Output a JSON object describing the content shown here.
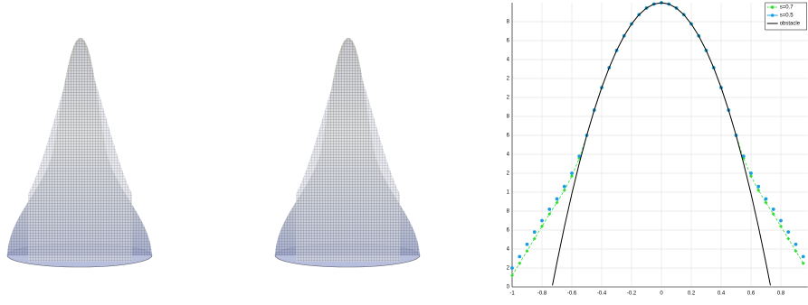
{
  "chart_data": {
    "type": "line",
    "legend": "upper right",
    "grid": true,
    "xlim": [
      -1,
      0.98
    ],
    "ylim": [
      0,
      3
    ],
    "xticks": [
      -1,
      -0.8,
      -0.6,
      -0.4,
      -0.2,
      0,
      0.2,
      0.4,
      0.6,
      0.8
    ],
    "yticks": [
      0,
      0.2,
      0.4,
      0.6,
      0.8,
      1,
      1.2,
      1.4,
      1.6,
      1.8,
      2,
      2.2,
      2.4,
      2.6,
      2.8
    ],
    "x": [
      -1,
      -0.95,
      -0.9,
      -0.85,
      -0.8,
      -0.75,
      -0.7,
      -0.65,
      -0.6,
      -0.55,
      -0.5,
      -0.45,
      -0.4,
      -0.35,
      -0.3,
      -0.25,
      -0.2,
      -0.15,
      -0.1,
      -0.05,
      0,
      0.05,
      0.1,
      0.15,
      0.2,
      0.25,
      0.3,
      0.35,
      0.4,
      0.45,
      0.5,
      0.55,
      0.6,
      0.65,
      0.7,
      0.75,
      0.8,
      0.85,
      0.9,
      0.95
    ],
    "series": [
      {
        "name": "s=0.7",
        "color": "#33dd33",
        "style": "dashed-diamond",
        "values": [
          0.12,
          0.25,
          0.38,
          0.51,
          0.64,
          0.77,
          0.89,
          1.02,
          1.17,
          1.36,
          1.6,
          1.866,
          2.104,
          2.314,
          2.496,
          2.65,
          2.776,
          2.874,
          2.944,
          2.986,
          3,
          2.986,
          2.944,
          2.874,
          2.776,
          2.65,
          2.496,
          2.314,
          2.104,
          1.866,
          1.6,
          1.36,
          1.17,
          1.02,
          0.89,
          0.77,
          0.64,
          0.51,
          0.38,
          0.25
        ]
      },
      {
        "name": "s=0.5",
        "color": "#1a9ee0",
        "style": "dot",
        "values": [
          0.2,
          0.32,
          0.45,
          0.58,
          0.7,
          0.82,
          0.93,
          1.06,
          1.2,
          1.38,
          1.6,
          1.866,
          2.104,
          2.314,
          2.496,
          2.65,
          2.776,
          2.874,
          2.944,
          2.986,
          3,
          2.986,
          2.944,
          2.874,
          2.776,
          2.65,
          2.496,
          2.314,
          2.104,
          1.866,
          1.6,
          1.38,
          1.2,
          1.06,
          0.93,
          0.82,
          0.7,
          0.58,
          0.45,
          0.32
        ]
      },
      {
        "name": "obstacle",
        "color": "#000000",
        "style": "line",
        "x": [
          -0.73,
          -0.7,
          -0.65,
          -0.6,
          -0.55,
          -0.5,
          -0.45,
          -0.4,
          -0.35,
          -0.3,
          -0.25,
          -0.2,
          -0.15,
          -0.1,
          -0.05,
          0,
          0.05,
          0.1,
          0.15,
          0.2,
          0.25,
          0.3,
          0.35,
          0.4,
          0.45,
          0.5,
          0.55,
          0.6,
          0.65,
          0.7,
          0.73
        ],
        "values": [
          0.016,
          0.256,
          0.634,
          0.984,
          1.306,
          1.6,
          1.866,
          2.104,
          2.314,
          2.496,
          2.65,
          2.776,
          2.874,
          2.944,
          2.986,
          3,
          2.986,
          2.944,
          2.874,
          2.776,
          2.65,
          2.496,
          2.314,
          2.104,
          1.866,
          1.6,
          1.306,
          0.984,
          0.634,
          0.256,
          0.016
        ]
      }
    ]
  }
}
